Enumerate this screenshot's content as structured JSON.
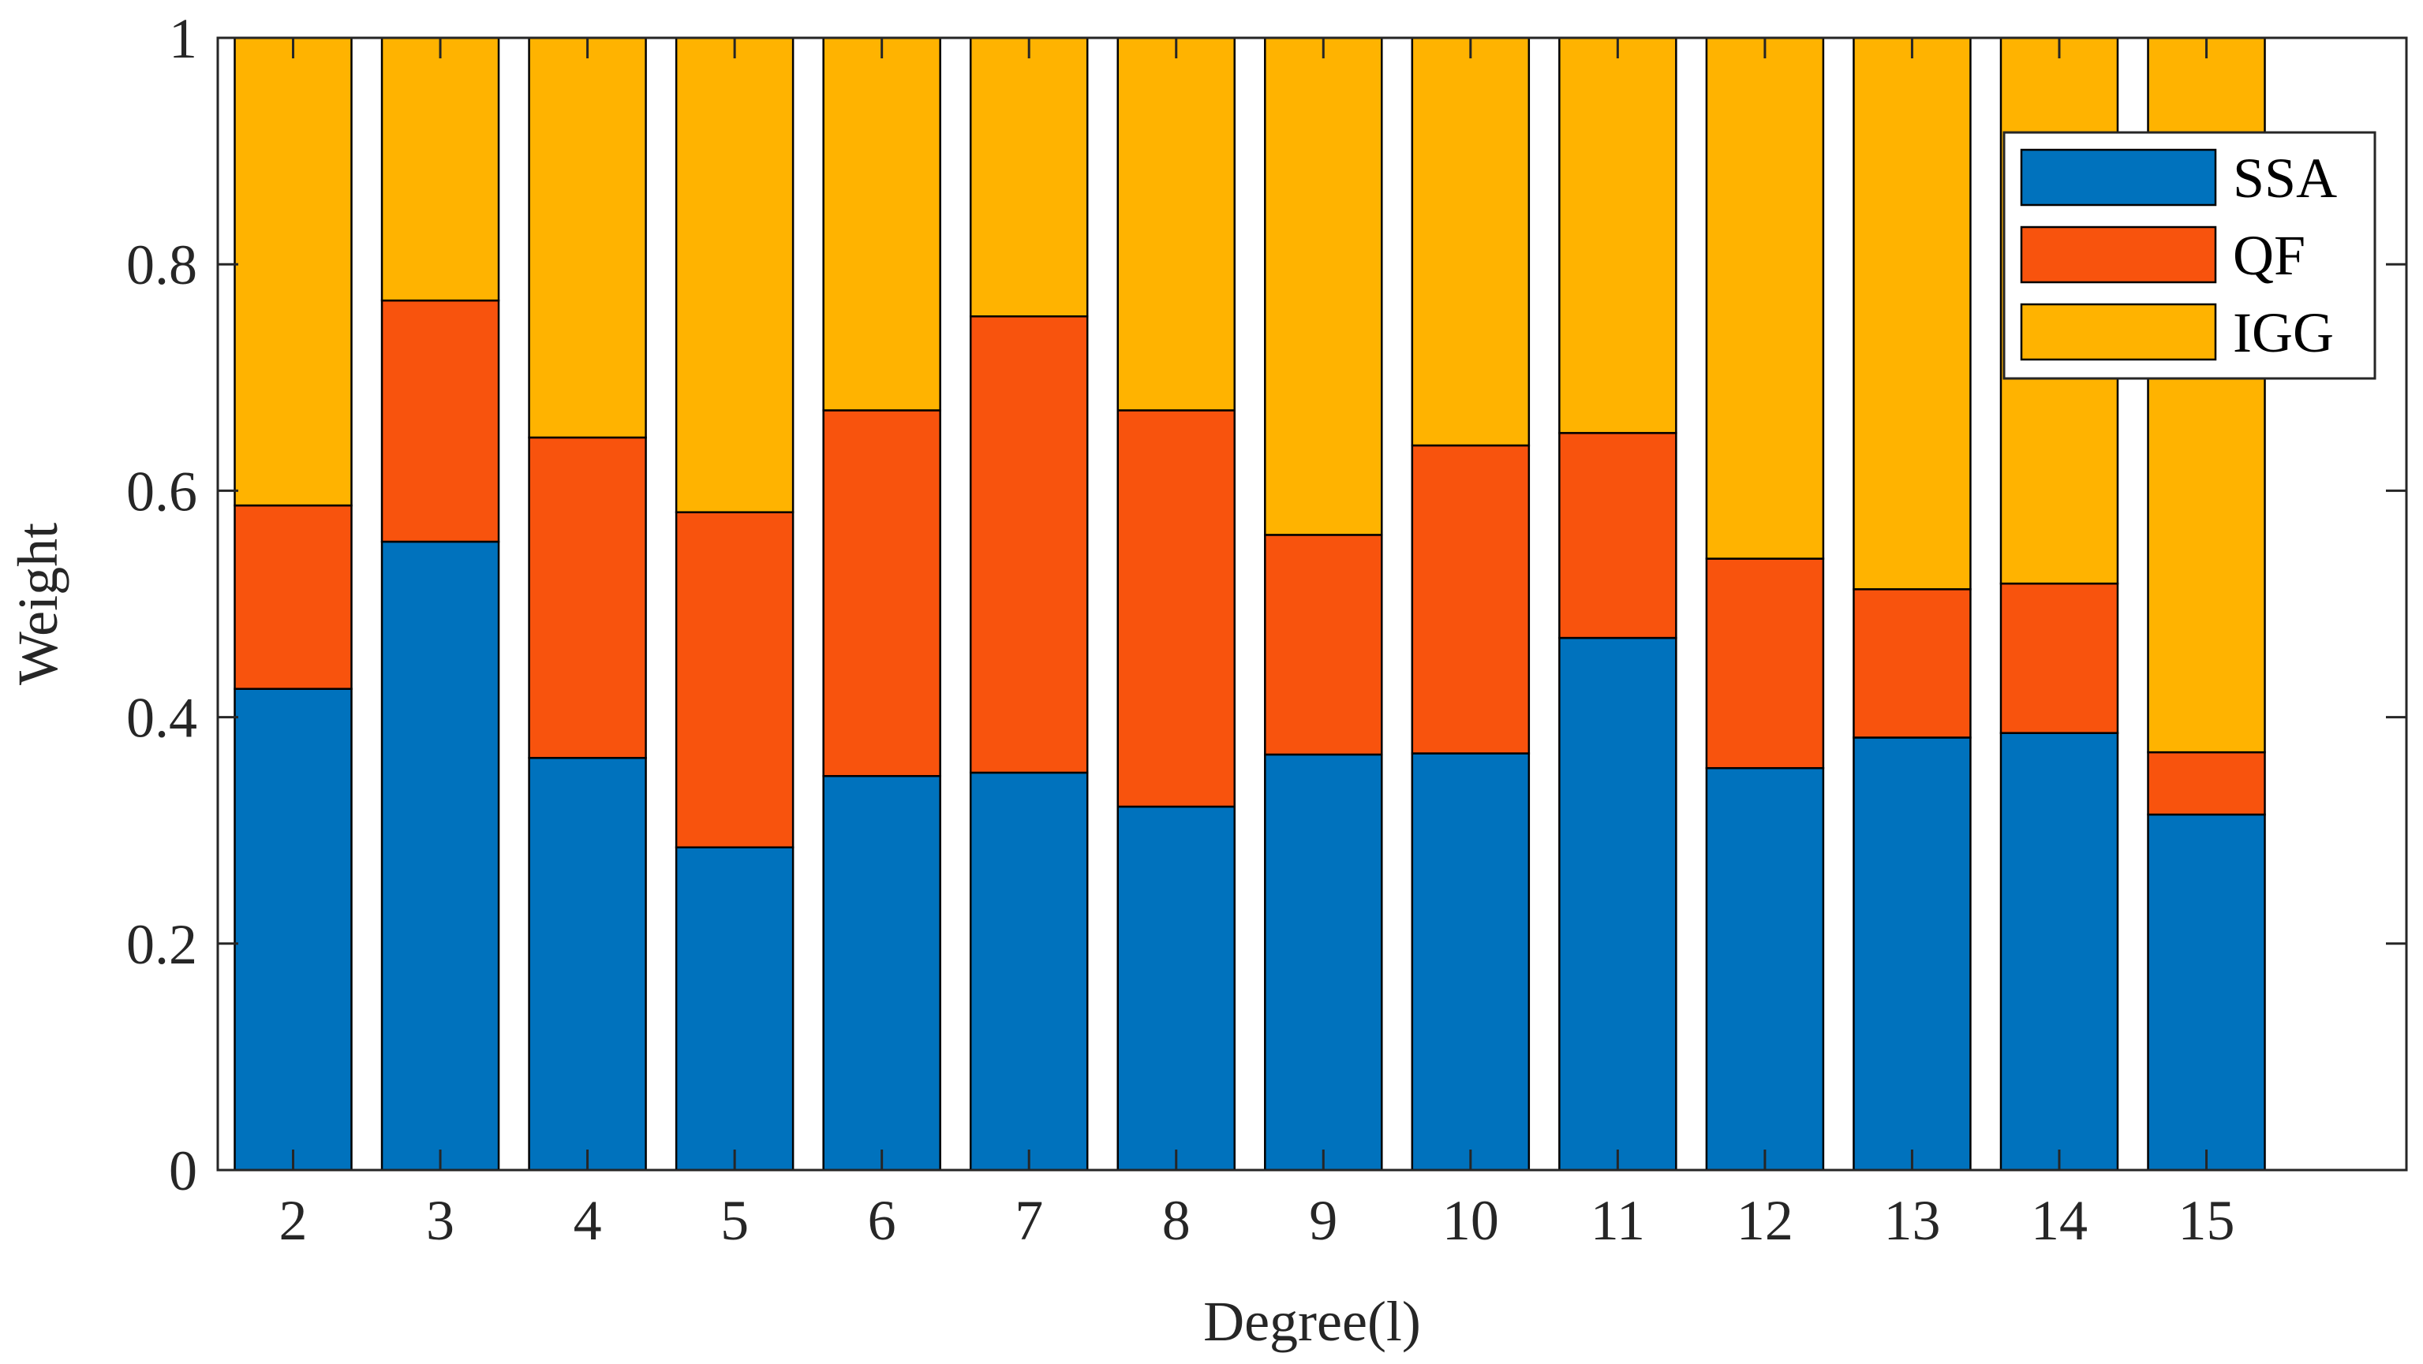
{
  "chart_data": {
    "type": "bar",
    "stacked": true,
    "title": "",
    "xlabel": "Degree(l)",
    "ylabel": "Weight",
    "ylim": [
      0,
      1
    ],
    "yticks": [
      "0",
      "0.2",
      "0.4",
      "0.6",
      "0.8",
      "1"
    ],
    "categories": [
      "2",
      "3",
      "4",
      "5",
      "6",
      "7",
      "8",
      "9",
      "10",
      "11",
      "12",
      "13",
      "14",
      "15"
    ],
    "series": [
      {
        "name": "SSA",
        "color": "#0072BD",
        "values": [
          0.425,
          0.555,
          0.364,
          0.285,
          0.348,
          0.351,
          0.321,
          0.367,
          0.368,
          0.47,
          0.355,
          0.382,
          0.386,
          0.314
        ]
      },
      {
        "name": "QF",
        "color": "#F8530D",
        "values": [
          0.162,
          0.213,
          0.283,
          0.296,
          0.323,
          0.403,
          0.35,
          0.194,
          0.272,
          0.181,
          0.185,
          0.131,
          0.132,
          0.055
        ]
      },
      {
        "name": "IGG",
        "color": "#FFB300",
        "values": [
          0.413,
          0.232,
          0.353,
          0.419,
          0.329,
          0.246,
          0.329,
          0.439,
          0.36,
          0.349,
          0.46,
          0.487,
          0.482,
          0.631
        ]
      }
    ],
    "legend_position": "top-right",
    "grid": false
  }
}
